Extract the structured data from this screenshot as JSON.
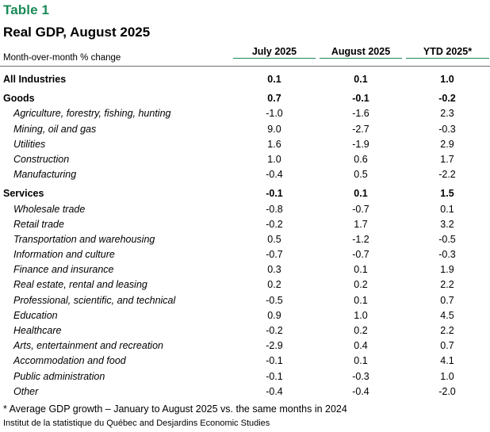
{
  "table": {
    "label": "Table 1",
    "title": "Real GDP, August 2025",
    "subtitle": "Month-over-month % change",
    "columns": [
      "July 2025",
      "August 2025",
      "YTD 2025*"
    ],
    "accent_color": "#1a8a57",
    "rows": [
      {
        "label": "All Industries",
        "level": "total",
        "values": [
          "0.1",
          "0.1",
          "1.0"
        ]
      },
      {
        "label": "Goods",
        "level": "section",
        "values": [
          "0.7",
          "-0.1",
          "-0.2"
        ]
      },
      {
        "label": "Agriculture, forestry, fishing, hunting",
        "level": "sub",
        "values": [
          "-1.0",
          "-1.6",
          "2.3"
        ]
      },
      {
        "label": "Mining, oil and gas",
        "level": "sub",
        "values": [
          "9.0",
          "-2.7",
          "-0.3"
        ]
      },
      {
        "label": "Utilities",
        "level": "sub",
        "values": [
          "1.6",
          "-1.9",
          "2.9"
        ]
      },
      {
        "label": "Construction",
        "level": "sub",
        "values": [
          "1.0",
          "0.6",
          "1.7"
        ]
      },
      {
        "label": "Manufacturing",
        "level": "sub",
        "values": [
          "-0.4",
          "0.5",
          "-2.2"
        ]
      },
      {
        "label": "Services",
        "level": "section",
        "values": [
          "-0.1",
          "0.1",
          "1.5"
        ]
      },
      {
        "label": "Wholesale trade",
        "level": "sub",
        "values": [
          "-0.8",
          "-0.7",
          "0.1"
        ]
      },
      {
        "label": "Retail trade",
        "level": "sub",
        "values": [
          "-0.2",
          "1.7",
          "3.2"
        ]
      },
      {
        "label": "Transportation and warehousing",
        "level": "sub",
        "values": [
          "0.5",
          "-1.2",
          "-0.5"
        ]
      },
      {
        "label": "Information and culture",
        "level": "sub",
        "values": [
          "-0.7",
          "-0.7",
          "-0.3"
        ]
      },
      {
        "label": "Finance and insurance",
        "level": "sub",
        "values": [
          "0.3",
          "0.1",
          "1.9"
        ]
      },
      {
        "label": "Real estate, rental and leasing",
        "level": "sub",
        "values": [
          "0.2",
          "0.2",
          "2.2"
        ]
      },
      {
        "label": "Professional, scientific, and technical",
        "level": "sub",
        "values": [
          "-0.5",
          "0.1",
          "0.7"
        ]
      },
      {
        "label": "Education",
        "level": "sub",
        "values": [
          "0.9",
          "1.0",
          "4.5"
        ]
      },
      {
        "label": "Healthcare",
        "level": "sub",
        "values": [
          "-0.2",
          "0.2",
          "2.2"
        ]
      },
      {
        "label": "Arts, entertainment and recreation",
        "level": "sub",
        "values": [
          "-2.9",
          "0.4",
          "0.7"
        ]
      },
      {
        "label": "Accommodation and food",
        "level": "sub",
        "values": [
          "-0.1",
          "0.1",
          "4.1"
        ]
      },
      {
        "label": "Public administration",
        "level": "sub",
        "values": [
          "-0.1",
          "-0.3",
          "1.0"
        ]
      },
      {
        "label": "Other",
        "level": "sub",
        "values": [
          "-0.4",
          "-0.4",
          "-2.0"
        ]
      }
    ],
    "footnote": "* Average GDP growth – January to August 2025 vs. the same months in 2024",
    "source": "Institut de la statistique du Québec and Desjardins Economic Studies"
  }
}
